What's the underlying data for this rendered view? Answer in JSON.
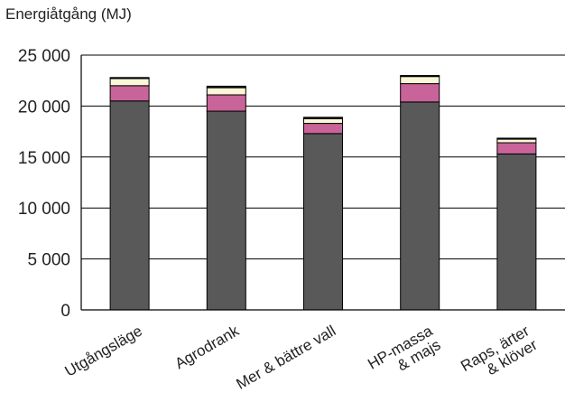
{
  "chart_data": {
    "type": "bar",
    "stacked": true,
    "ylabel": "Energiåtgång (MJ)",
    "ylim": [
      0,
      25000
    ],
    "yticks": [
      0,
      5000,
      10000,
      15000,
      20000,
      25000
    ],
    "ytick_labels": [
      "0",
      "5 000",
      "10 000",
      "15 000",
      "20 000",
      "25 000"
    ],
    "grid": true,
    "legend": "none",
    "categories": [
      [
        "Utgångsläge"
      ],
      [
        "Agrodrank"
      ],
      [
        "Mer & bättre vall"
      ],
      [
        "HP-massa",
        "& majs"
      ],
      [
        "Raps, ärter",
        "& klöver"
      ]
    ],
    "series": [
      {
        "color": "#595959",
        "values": [
          20500,
          19500,
          17300,
          20400,
          15300
        ]
      },
      {
        "color": "#c8649a",
        "values": [
          1500,
          1600,
          1000,
          1800,
          1100
        ]
      },
      {
        "color": "#fbf6d8",
        "values": [
          700,
          700,
          450,
          700,
          350
        ]
      },
      {
        "color": "#111111",
        "values": [
          100,
          150,
          150,
          100,
          100
        ]
      }
    ]
  }
}
